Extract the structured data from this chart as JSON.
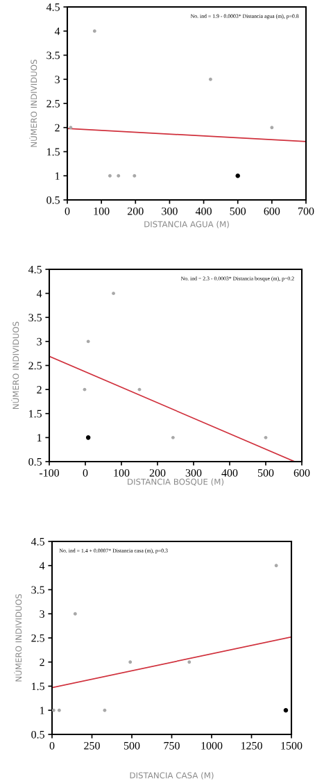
{
  "chart_data": [
    {
      "type": "scatter",
      "xlabel": "DISTANCIA AGUA (M)",
      "ylabel": "NÚMERO INDIVIDUOS",
      "annotations": [
        "No. ind = 1.9 - 0.0003* Distancia agua (m), p=0.8"
      ],
      "xlim": [
        0,
        700
      ],
      "xticks": [
        0,
        100,
        200,
        300,
        400,
        500,
        600,
        700
      ],
      "ylim": [
        0.5,
        4.5
      ],
      "yticks": [
        {
          "value": 0.5,
          "label": "0.5"
        },
        {
          "value": 1,
          "label": "1"
        },
        {
          "value": 1.5,
          "label": "1.5"
        },
        {
          "value": 2,
          "label": "2"
        },
        {
          "value": 2.5,
          "label": "2.5"
        },
        {
          "value": 3,
          "label": "3"
        },
        {
          "value": 3.5,
          "label": "3.5"
        },
        {
          "value": 4,
          "label": "4"
        },
        {
          "value": 4.5,
          "label": "4.5"
        }
      ],
      "grid": false,
      "series": [
        {
          "color": "#a8a8a8",
          "marker": "circle",
          "x": [
            10,
            80,
            125,
            150,
            197,
            420,
            600
          ],
          "values": [
            2,
            4,
            1,
            1,
            1,
            3,
            2
          ]
        },
        {
          "color": "#000000",
          "marker": "circle",
          "x": [
            500
          ],
          "values": [
            1
          ]
        },
        {
          "type": "line",
          "color": "#d0303c",
          "x": [
            0,
            700
          ],
          "values": [
            1.98,
            1.71
          ]
        }
      ]
    },
    {
      "type": "scatter",
      "xlabel": "DISTANCIA BOSQUE (M)",
      "ylabel": "NÚMERO INDIVIDUOS",
      "annotations": [
        "No. ind = 2.3 - 0.0003* Distancia bosque (m), p=0.2"
      ],
      "xlim": [
        -100,
        600
      ],
      "xticks": [
        -100,
        0,
        100,
        200,
        300,
        400,
        500,
        600
      ],
      "ylim": [
        0.5,
        4.5
      ],
      "yticks": [
        {
          "value": 0.5,
          "label": "0.5"
        },
        {
          "value": 1,
          "label": "1"
        },
        {
          "value": 1.5,
          "label": "1.5"
        },
        {
          "value": 2,
          "label": "2"
        },
        {
          "value": 2.5,
          "label": "2.5"
        },
        {
          "value": 3,
          "label": "3"
        },
        {
          "value": 3.5,
          "label": "3.5"
        },
        {
          "value": 4,
          "label": "4"
        },
        {
          "value": 4.5,
          "label": "4.5"
        }
      ],
      "grid": false,
      "series": [
        {
          "color": "#a8a8a8",
          "marker": "circle",
          "x": [
            -2,
            8,
            78,
            150,
            243,
            500
          ],
          "values": [
            2,
            3,
            4,
            2,
            1,
            1
          ]
        },
        {
          "color": "#000000",
          "marker": "circle",
          "x": [
            8
          ],
          "values": [
            1
          ]
        },
        {
          "type": "line",
          "color": "#d0303c",
          "x": [
            -100,
            580
          ],
          "values": [
            2.69,
            0.5
          ]
        }
      ]
    },
    {
      "type": "scatter",
      "xlabel": "DISTANCIA CASA (M)",
      "ylabel": "NÚMERO INDIVIDUOS",
      "annotations": [
        "No. ind = 1.4 + 0.0007* Distancia casa (m), p=0.3"
      ],
      "xlim": [
        0,
        1500
      ],
      "xticks": [
        0,
        250,
        500,
        750,
        1000,
        1250,
        1500
      ],
      "ylim": [
        0.5,
        4.5
      ],
      "yticks": [
        {
          "value": 0.5,
          "label": "0.5"
        },
        {
          "value": 1,
          "label": "1"
        },
        {
          "value": 1.5,
          "label": "1.5"
        },
        {
          "value": 2,
          "label": "2"
        },
        {
          "value": 2.5,
          "label": "2.5"
        },
        {
          "value": 3,
          "label": "3"
        },
        {
          "value": 3.5,
          "label": "3.5"
        },
        {
          "value": 4,
          "label": "4"
        },
        {
          "value": 4.5,
          "label": "4.5"
        }
      ],
      "grid": false,
      "series": [
        {
          "color": "#a8a8a8",
          "marker": "circle",
          "x": [
            10,
            45,
            145,
            330,
            490,
            860,
            1405
          ],
          "values": [
            1,
            1,
            3,
            1,
            2,
            2,
            4
          ]
        },
        {
          "color": "#000000",
          "marker": "circle",
          "x": [
            1465
          ],
          "values": [
            1
          ]
        },
        {
          "type": "line",
          "color": "#d0303c",
          "x": [
            0,
            1500
          ],
          "values": [
            1.47,
            2.52
          ]
        }
      ]
    }
  ]
}
